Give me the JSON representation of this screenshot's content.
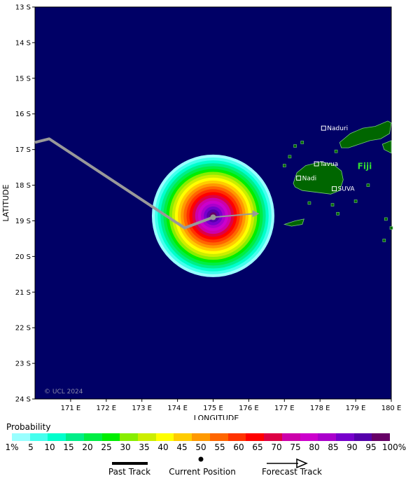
{
  "axes": {
    "xlabel": "LONGITUDE",
    "ylabel": "LATITUDE",
    "lon_range": [
      170,
      180
    ],
    "lat_range": [
      -13,
      -24
    ],
    "lon_ticks": [
      "171 E",
      "172 E",
      "173 E",
      "174 E",
      "175 E",
      "176 E",
      "177 E",
      "178 E",
      "179 E",
      "180 E"
    ],
    "lat_ticks": [
      "13 S",
      "14 S",
      "15 S",
      "16 S",
      "17 S",
      "18 S",
      "19 S",
      "20 S",
      "21 S",
      "22 S",
      "23 S",
      "24 S"
    ]
  },
  "map": {
    "ocean_color": "#000066",
    "land_color": "#006600",
    "track_color": "#999999",
    "credit": "© UCL 2024",
    "country_label": "Fiji",
    "places": [
      {
        "name": "Naduri",
        "lon": 178.1,
        "lat": -16.4
      },
      {
        "name": "Tavua",
        "lon": 177.9,
        "lat": -17.4
      },
      {
        "name": "Nadi",
        "lon": 177.4,
        "lat": -17.8
      },
      {
        "name": "SUVA",
        "lon": 178.4,
        "lat": -18.1
      }
    ]
  },
  "storm": {
    "current_position": {
      "lon": 175.0,
      "lat": -18.9
    },
    "past_track": [
      {
        "lon": 170.0,
        "lat": -16.8
      },
      {
        "lon": 170.4,
        "lat": -16.7
      },
      {
        "lon": 174.2,
        "lat": -19.2
      },
      {
        "lon": 175.0,
        "lat": -18.9
      }
    ],
    "forecast_track": [
      {
        "lon": 175.0,
        "lat": -18.9
      },
      {
        "lon": 176.3,
        "lat": -18.8
      }
    ],
    "probability_peak": 100,
    "probability_radius_deg": 1.7
  },
  "colorbar": {
    "title": "Probability",
    "labels": [
      "1%",
      "5",
      "10",
      "15",
      "20",
      "25",
      "30",
      "35",
      "40",
      "45",
      "50",
      "55",
      "60",
      "65",
      "70",
      "75",
      "80",
      "85",
      "90",
      "95",
      "100%"
    ],
    "colors": [
      "#99ffff",
      "#44ffee",
      "#00ffcc",
      "#00ee88",
      "#00ee44",
      "#00ee00",
      "#88ee00",
      "#ccee00",
      "#ffff00",
      "#ffcc00",
      "#ff9900",
      "#ff6600",
      "#ff3300",
      "#ff0000",
      "#dd0044",
      "#cc00aa",
      "#cc00cc",
      "#aa00cc",
      "#7700cc",
      "#5500aa",
      "#660066"
    ]
  },
  "legend": {
    "past_track": "Past Track",
    "current_position": "Current Position",
    "forecast_track": "Forecast Track"
  }
}
